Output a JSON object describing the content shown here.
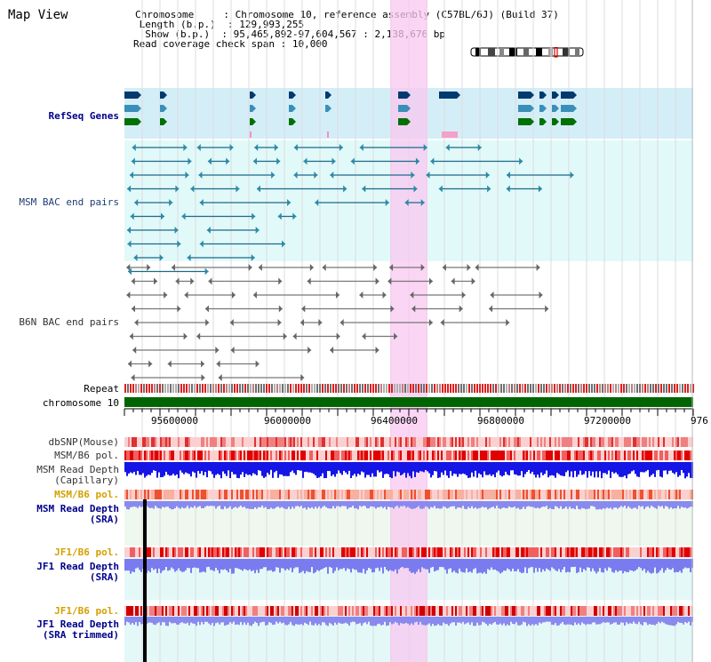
{
  "title": "Map View",
  "info": {
    "chromosome_label": "Chromosome",
    "chromosome_value": ": Chromosome 10, reference assembly (C57BL/6J) (Build 37)",
    "length_label": "Length (b.p.)",
    "length_value": ": 129,993,255",
    "show_label": "Show (b.p.)",
    "show_value": ": 95,465,892-97,604,567 : 2,138,676 bp",
    "coverage_label": "Read coverage check span",
    "coverage_value": ": 10,000"
  },
  "tracks": {
    "refseq": "RefSeq Genes",
    "msm_bac": "MSM BAC end pairs",
    "b6n_bac": "B6N BAC end pairs",
    "repeat": "Repeat",
    "chromosome": "chromosome 10",
    "dbsnp": "dbSNP(Mouse)",
    "msm_b6_pol": "MSM/B6 pol.",
    "msm_read_depth_cap_1": "MSM Read Depth",
    "msm_read_depth_cap_2": "(Capillary)",
    "msm_b6_pol_2": "MSM/B6 pol.",
    "msm_read_depth_sra_1": "MSM Read Depth",
    "msm_read_depth_sra_2": "(SRA)",
    "jf1_b6_pol": "JF1/B6 pol.",
    "jf1_read_depth_sra_1": "JF1 Read Depth",
    "jf1_read_depth_sra_2": "(SRA)",
    "jf1_b6_pol_2": "JF1/B6 pol.",
    "jf1_read_depth_trim_1": "JF1 Read Depth",
    "jf1_read_depth_trim_2": "(SRA trimmed)"
  },
  "axis_ticks": [
    "95600000",
    "96000000",
    "96400000",
    "96800000",
    "97200000",
    "976"
  ],
  "colors": {
    "highlight": "#f5d0f0",
    "refseq_bg": "#d6f0f8",
    "bac_bg": "#e0f8f8",
    "chromosome_bar": "#007000",
    "depth_blue": "#1a1aee",
    "depth_light": "#8888ee",
    "snp_red": "#f05050"
  }
}
